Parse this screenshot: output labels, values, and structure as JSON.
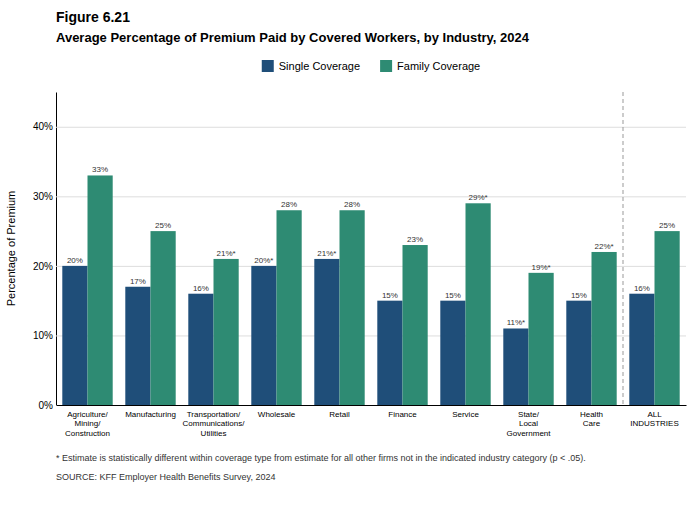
{
  "chart_data": {
    "type": "bar",
    "title": "Figure 6.21",
    "subtitle": "Average Percentage of Premium Paid by Covered Workers, by Industry, 2024",
    "categories": [
      "Agriculture/\nMining/\nConstruction",
      "Manufacturing",
      "Transportation/\nCommunications/\nUtilities",
      "Wholesale",
      "Retail",
      "Finance",
      "Service",
      "State/\nLocal\nGovernment",
      "Health\nCare",
      "ALL\nINDUSTRIES"
    ],
    "series": [
      {
        "name": "Single Coverage",
        "color": "#1F4E79",
        "values": [
          20,
          17,
          16,
          20,
          21,
          15,
          15,
          11,
          15,
          16
        ],
        "value_labels": [
          "20%",
          "17%",
          "16%",
          "20%*",
          "21%*",
          "15%",
          "15%",
          "11%*",
          "15%",
          "16%"
        ]
      },
      {
        "name": "Family Coverage",
        "color": "#2E8B73",
        "values": [
          33,
          25,
          21,
          28,
          28,
          23,
          29,
          19,
          22,
          25
        ],
        "value_labels": [
          "33%",
          "25%",
          "21%*",
          "28%",
          "28%",
          "23%",
          "29%*",
          "19%*",
          "22%*",
          "25%"
        ]
      }
    ],
    "ylim": [
      0,
      45
    ],
    "yticks": [
      {
        "value": 0,
        "label": "0%"
      },
      {
        "value": 10,
        "label": "10%"
      },
      {
        "value": 20,
        "label": "20%"
      },
      {
        "value": 30,
        "label": "30%"
      },
      {
        "value": 40,
        "label": "40%"
      }
    ],
    "ylabel": "Percentage of Premium",
    "annotations": [
      "* Estimate is statistically different within coverage type from estimate for all other firms not in the indicated industry category (p < .05).",
      "SOURCE: KFF Employer Health Benefits Survey, 2024"
    ],
    "grid": true,
    "data_labels": true,
    "legend": "top"
  }
}
